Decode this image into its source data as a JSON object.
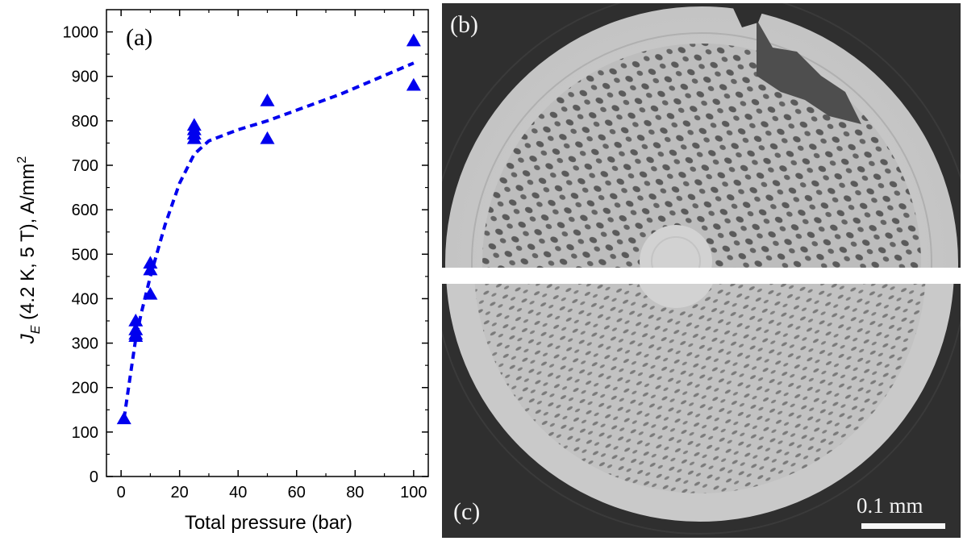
{
  "chart_data": {
    "type": "scatter",
    "panel_label": "(a)",
    "xlabel": "Total pressure (bar)",
    "ylabel": {
      "symbol": "J",
      "subscript": "E",
      "rest": " (4.2 K, 5 T), A/mm",
      "superscript": "2"
    },
    "xlim": [
      -5,
      105
    ],
    "ylim": [
      0,
      1050
    ],
    "x_ticks": [
      0,
      20,
      40,
      60,
      80,
      100
    ],
    "y_ticks": [
      0,
      100,
      200,
      300,
      400,
      500,
      600,
      700,
      800,
      900,
      1000
    ],
    "grid": false,
    "series": [
      {
        "marker": "triangle",
        "color": "#0000ee",
        "points": [
          {
            "x": 1,
            "y": 130
          },
          {
            "x": 5,
            "y": 315
          },
          {
            "x": 5,
            "y": 320
          },
          {
            "x": 5,
            "y": 330
          },
          {
            "x": 5,
            "y": 350
          },
          {
            "x": 10,
            "y": 410
          },
          {
            "x": 10,
            "y": 465
          },
          {
            "x": 10,
            "y": 480
          },
          {
            "x": 25,
            "y": 760
          },
          {
            "x": 25,
            "y": 770
          },
          {
            "x": 25,
            "y": 780
          },
          {
            "x": 25,
            "y": 790
          },
          {
            "x": 50,
            "y": 760
          },
          {
            "x": 50,
            "y": 845
          },
          {
            "x": 100,
            "y": 880
          },
          {
            "x": 100,
            "y": 980
          }
        ]
      },
      {
        "style": "dashed-line",
        "color": "#0000ee",
        "points": [
          {
            "x": 1,
            "y": 130
          },
          {
            "x": 3,
            "y": 220
          },
          {
            "x": 5,
            "y": 310
          },
          {
            "x": 7,
            "y": 370
          },
          {
            "x": 10,
            "y": 450
          },
          {
            "x": 15,
            "y": 565
          },
          {
            "x": 20,
            "y": 660
          },
          {
            "x": 25,
            "y": 725
          },
          {
            "x": 30,
            "y": 755
          },
          {
            "x": 40,
            "y": 780
          },
          {
            "x": 50,
            "y": 800
          },
          {
            "x": 75,
            "y": 860
          },
          {
            "x": 100,
            "y": 930
          }
        ]
      }
    ]
  },
  "image_panels": {
    "b_label": "(b)",
    "c_label": "(c)",
    "scale_bar_label": "0.1 mm"
  },
  "colors": {
    "data": "#0000ee",
    "image_background": "#2f2f2f",
    "filament_matrix": "#c8c8c8",
    "filament_voids": "#5a5a5a"
  }
}
